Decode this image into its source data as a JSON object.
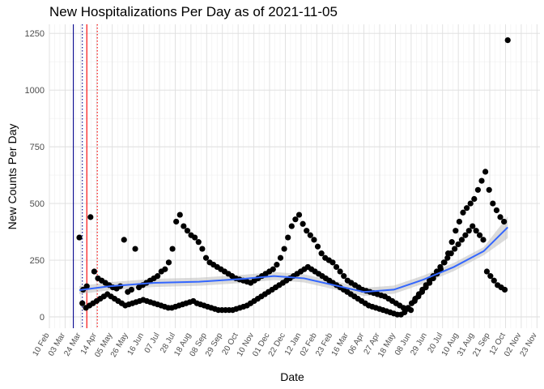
{
  "chart_data": {
    "type": "scatter",
    "title": "New Hospitalizations Per Day as of 2021-11-05",
    "xlabel": "Date",
    "ylabel": "New Counts Per Day",
    "ylim": [
      -50,
      1290
    ],
    "yticks": [
      0,
      250,
      500,
      750,
      1000,
      1250
    ],
    "xticks": [
      "10 Feb",
      "03 Mar",
      "24 Mar",
      "14 Apr",
      "05 May",
      "26 May",
      "16 Jun",
      "07 Jul",
      "28 Jul",
      "18 Aug",
      "08 Sep",
      "29 Sep",
      "20 Oct",
      "10 Nov",
      "01 Dec",
      "22 Dec",
      "12 Jan",
      "02 Feb",
      "23 Feb",
      "16 Mar",
      "06 Apr",
      "27 Apr",
      "18 May",
      "08 Jun",
      "29 Jun",
      "20 Jul",
      "10 Aug",
      "31 Aug",
      "21 Sep",
      "12 Oct",
      "02 Nov",
      "23 Nov"
    ],
    "x_range_days": [
      0,
      655
    ],
    "vlines": [
      {
        "day": 32,
        "color": "#00008b",
        "style": "solid"
      },
      {
        "day": 44,
        "color": "#00008b",
        "style": "dotted"
      },
      {
        "day": 50,
        "color": "#ff0000",
        "style": "solid"
      },
      {
        "day": 64,
        "color": "#ff0000",
        "style": "dotted"
      }
    ],
    "points_series_a": [
      350,
      120,
      135,
      440,
      200,
      170,
      160,
      150,
      140,
      130,
      125,
      135,
      340,
      110,
      120,
      300,
      130,
      140,
      150,
      160,
      170,
      180,
      200,
      210,
      240,
      300,
      420,
      450,
      400,
      380,
      360,
      350,
      330,
      300,
      260,
      240,
      230,
      220,
      210,
      200,
      190,
      180,
      170,
      165,
      160,
      155,
      150,
      160,
      170,
      180,
      190,
      200,
      210,
      230,
      260,
      300,
      350,
      400,
      430,
      450,
      410,
      380,
      360,
      340,
      310,
      280,
      260,
      250,
      240,
      220,
      200,
      180,
      160,
      150,
      140,
      130,
      120,
      115,
      110,
      105,
      100,
      95,
      90,
      80,
      70,
      60,
      50,
      40,
      35,
      30,
      70,
      90,
      110,
      130,
      150,
      170,
      190,
      210,
      240,
      280,
      330,
      380,
      420,
      460,
      480,
      500,
      520,
      560,
      600,
      640,
      560,
      500,
      470,
      440,
      420,
      1220
    ],
    "points_series_b": [
      60,
      40,
      50,
      60,
      70,
      80,
      90,
      100,
      90,
      80,
      70,
      60,
      50,
      55,
      60,
      65,
      70,
      75,
      70,
      65,
      60,
      55,
      50,
      45,
      40,
      40,
      45,
      50,
      55,
      60,
      65,
      70,
      60,
      55,
      50,
      45,
      40,
      35,
      30,
      30,
      30,
      30,
      30,
      35,
      40,
      45,
      50,
      60,
      70,
      80,
      90,
      100,
      110,
      120,
      130,
      140,
      150,
      160,
      170,
      180,
      190,
      200,
      210,
      220,
      210,
      200,
      190,
      180,
      170,
      160,
      150,
      140,
      130,
      120,
      110,
      100,
      90,
      80,
      70,
      60,
      50,
      45,
      40,
      35,
      30,
      25,
      20,
      15,
      10,
      10,
      20,
      40,
      60,
      80,
      100,
      120,
      140,
      160,
      180,
      200,
      220,
      240,
      260,
      280,
      300,
      320,
      340,
      360,
      380,
      400,
      380,
      360,
      340,
      200,
      180,
      160,
      140,
      130,
      120
    ]
  }
}
